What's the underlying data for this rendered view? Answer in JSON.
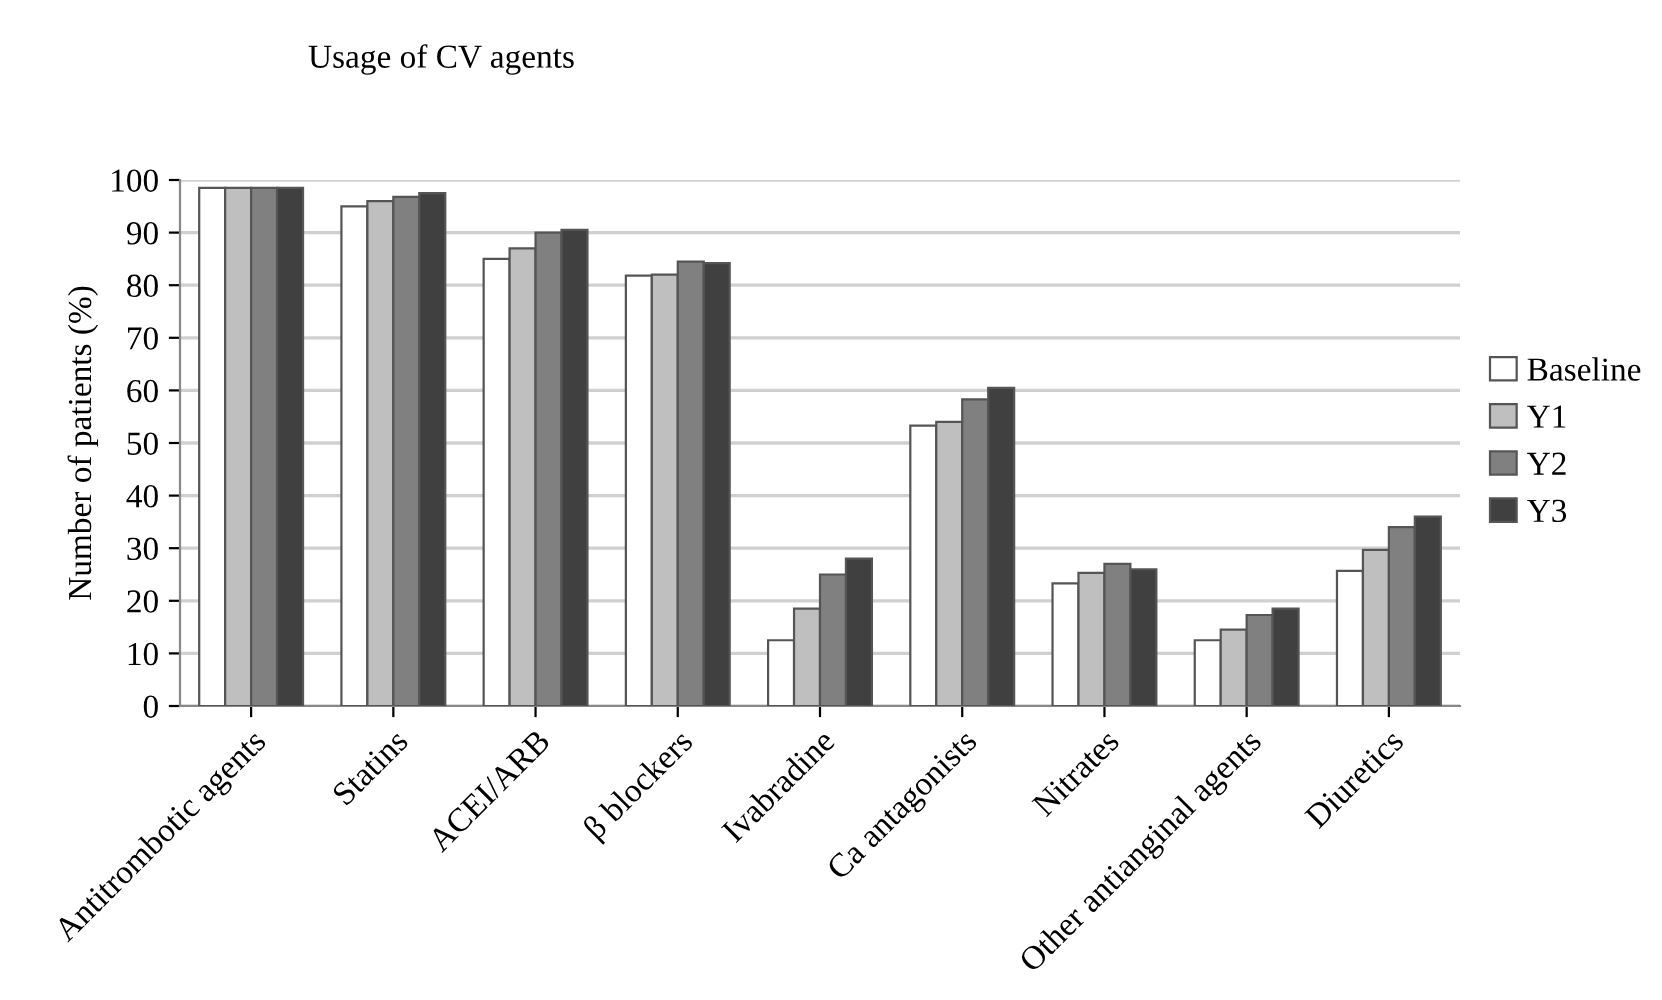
{
  "chart_data": {
    "type": "bar",
    "title": "Usage of CV agents",
    "ylabel": "Number of patients (%)",
    "categories": [
      "Antitrombotic agents",
      "Statins",
      "ACEI/ARB",
      "β blockers",
      "Ivabradine",
      "Ca antagonists",
      "Nitrates",
      "Other antianginal agents",
      "Diuretics"
    ],
    "series": [
      {
        "name": "Baseline",
        "color": "#ffffff",
        "values": [
          98.5,
          95,
          85,
          81.8,
          12.5,
          53.3,
          23.3,
          12.5,
          25.7
        ]
      },
      {
        "name": "Y1",
        "color": "#bfbfbf",
        "values": [
          98.5,
          96,
          87,
          82,
          18.5,
          54,
          25.3,
          14.5,
          29.7
        ]
      },
      {
        "name": "Y2",
        "color": "#808080",
        "values": [
          98.5,
          96.8,
          90,
          84.5,
          25,
          58.3,
          27,
          17.3,
          34
        ]
      },
      {
        "name": "Y3",
        "color": "#404040",
        "values": [
          98.5,
          97.5,
          90.5,
          84.2,
          28,
          60.5,
          26,
          18.5,
          36
        ]
      }
    ],
    "ylim": [
      0,
      100
    ],
    "yticks": [
      0,
      10,
      20,
      30,
      40,
      50,
      60,
      70,
      80,
      90,
      100
    ],
    "grid": "y",
    "legend": "right"
  }
}
